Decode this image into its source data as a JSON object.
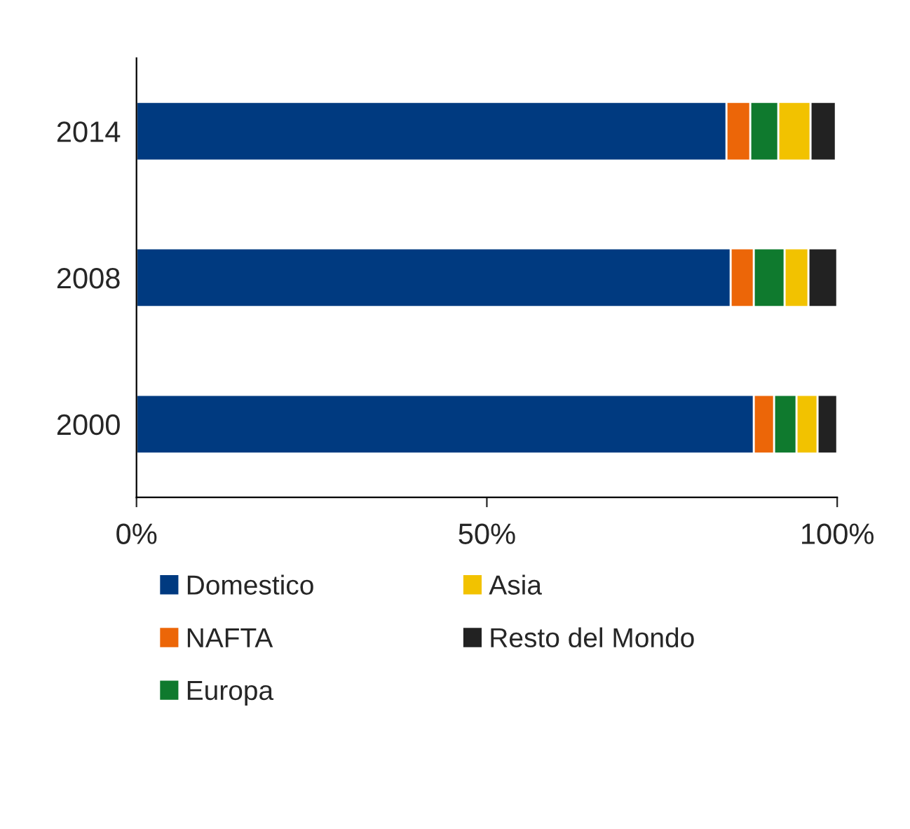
{
  "chart_data": {
    "type": "bar",
    "orientation": "horizontal",
    "stacked": true,
    "categories": [
      "2014",
      "2008",
      "2000"
    ],
    "series": [
      {
        "name": "Domestico",
        "color": "#003a80",
        "values": [
          84.2,
          84.8,
          88.1
        ]
      },
      {
        "name": "NAFTA",
        "color": "#ec6608",
        "values": [
          3.4,
          3.3,
          2.9
        ]
      },
      {
        "name": "Europa",
        "color": "#0f7a2e",
        "values": [
          4.0,
          4.4,
          3.2
        ]
      },
      {
        "name": "Asia",
        "color": "#f2c200",
        "values": [
          4.6,
          3.4,
          3.0
        ]
      },
      {
        "name": "Resto del Mondo",
        "color": "#222222",
        "values": [
          3.6,
          4.1,
          2.8
        ]
      }
    ],
    "xlim": [
      0,
      100
    ],
    "xticks": [
      {
        "value": 0,
        "label": "0%"
      },
      {
        "value": 50,
        "label": "50%"
      },
      {
        "value": 100,
        "label": "100%"
      }
    ],
    "grid": false,
    "legend": "bottom"
  }
}
